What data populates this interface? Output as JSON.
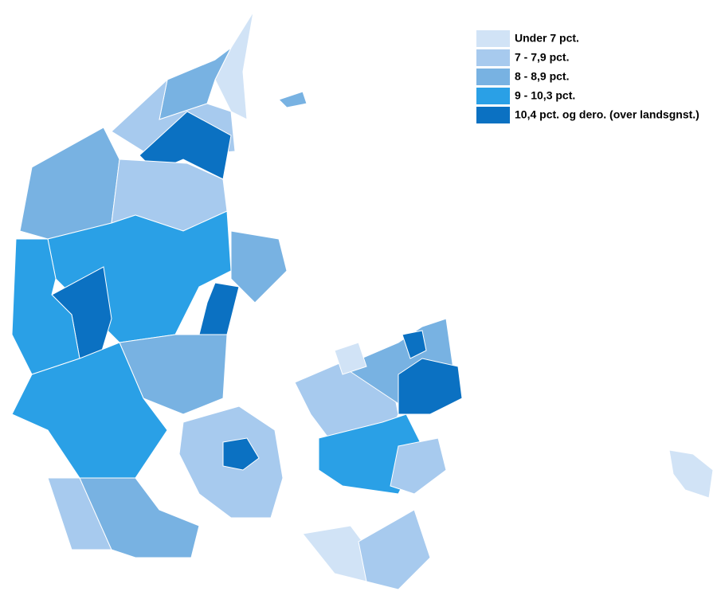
{
  "legend": {
    "items": [
      {
        "label": "Under 7 pct.",
        "color": "#d1e3f6"
      },
      {
        "label": "7 - 7,9 pct.",
        "color": "#a7caee"
      },
      {
        "label": "8 - 8,9 pct.",
        "color": "#78b2e2"
      },
      {
        "label": "9 - 10,3 pct.",
        "color": "#2aa0e6"
      },
      {
        "label": "10,4 pct. og dero. (over landsgnst.)",
        "color": "#0b71c2"
      }
    ]
  }
}
